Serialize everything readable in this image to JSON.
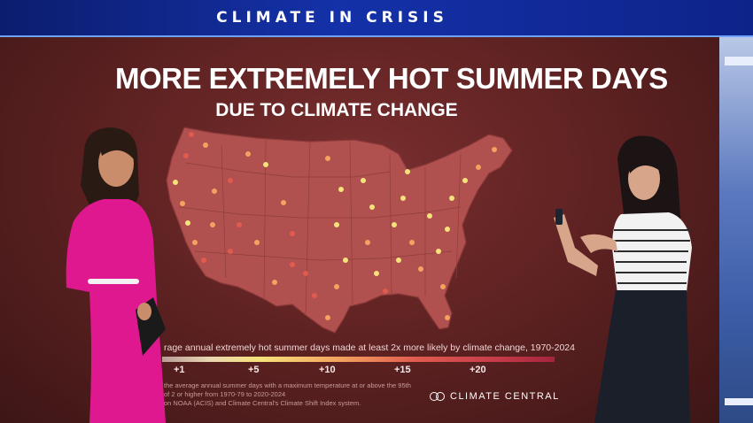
{
  "banner": {
    "title": "CLIMATE IN CRISIS"
  },
  "graphic": {
    "title": "MORE EXTREMELY HOT SUMMER DAYS",
    "subtitle": "DUE TO CLIMATE CHANGE",
    "legend_caption": "rage annual extremely hot summer days made at least 2x more likely by climate change, 1970-2024",
    "legend_ticks": [
      "+1",
      "+5",
      "+10",
      "+15",
      "+20"
    ],
    "footnote_lines": [
      "the average annual summer days with a maximum temperature at or above the 95th",
      "of 2 or higher from 1970-79 to 2020-2024",
      "on NOAA (ACIS) and Climate Central's Climate Shift Index system."
    ],
    "logo_text": "CLIMATE CENTRAL",
    "colors": {
      "background": "#5a2020",
      "map_fill": "#b0504f",
      "dot_low": "#f6e27a",
      "dot_mid": "#f3a35f",
      "dot_high": "#e05a4e"
    }
  }
}
